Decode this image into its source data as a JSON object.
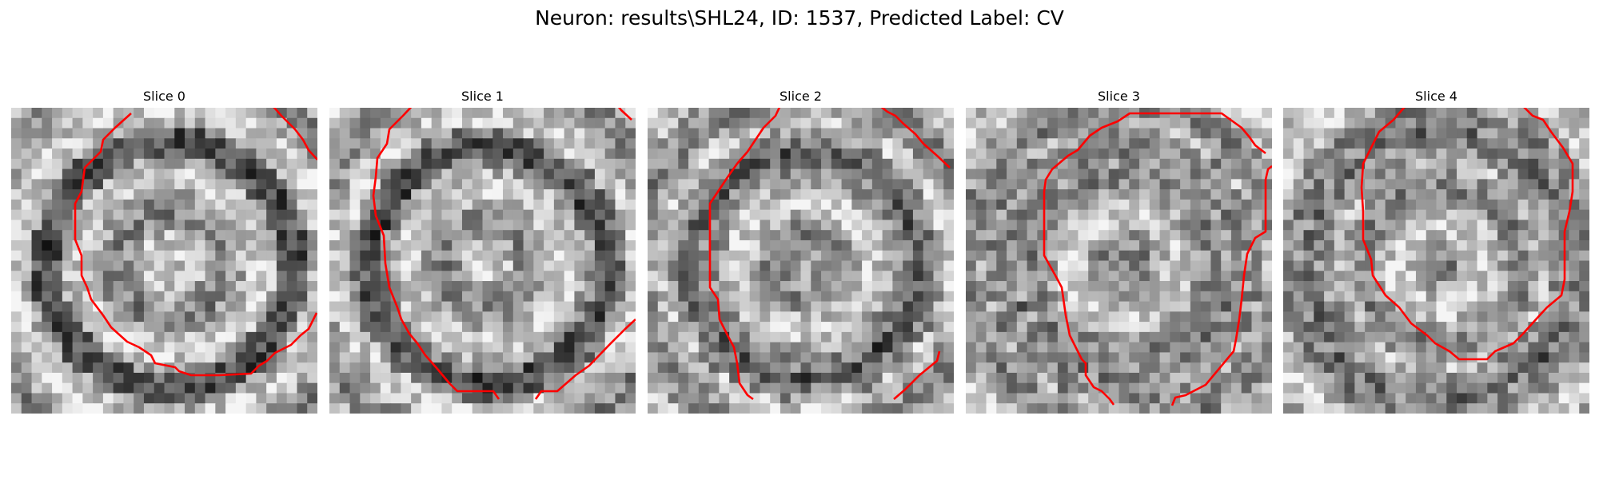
{
  "figure": {
    "title": "Neuron: results\\SHL24, ID: 1537, Predicted Label: CV"
  },
  "panels": [
    {
      "title": "Slice 0",
      "contours": [
        [
          [
            150,
            142
          ],
          [
            130,
            160
          ],
          [
            115,
            175
          ],
          [
            112,
            190
          ],
          [
            92,
            210
          ],
          [
            88,
            240
          ],
          [
            80,
            255
          ],
          [
            80,
            300
          ],
          [
            88,
            320
          ],
          [
            88,
            345
          ],
          [
            95,
            360
          ],
          [
            100,
            375
          ],
          [
            115,
            395
          ],
          [
            125,
            410
          ],
          [
            145,
            428
          ],
          [
            160,
            435
          ],
          [
            175,
            445
          ],
          [
            180,
            455
          ],
          [
            205,
            460
          ],
          [
            210,
            465
          ],
          [
            225,
            470
          ],
          [
            260,
            470
          ],
          [
            300,
            468
          ],
          [
            310,
            458
          ],
          [
            320,
            452
          ],
          [
            330,
            442
          ],
          [
            350,
            432
          ],
          [
            362,
            420
          ],
          [
            372,
            412
          ],
          [
            378,
            400
          ],
          [
            382,
            392
          ]
        ],
        [
          [
            323,
            128
          ],
          [
            338,
            145
          ],
          [
            355,
            162
          ],
          [
            365,
            175
          ],
          [
            372,
            188
          ],
          [
            383,
            200
          ]
        ]
      ]
    },
    {
      "title": "Slice 1",
      "contours": [
        [
          [
            108,
            128
          ],
          [
            92,
            145
          ],
          [
            75,
            162
          ],
          [
            72,
            180
          ],
          [
            60,
            198
          ],
          [
            58,
            222
          ],
          [
            55,
            245
          ],
          [
            58,
            270
          ],
          [
            68,
            295
          ],
          [
            70,
            330
          ],
          [
            75,
            360
          ],
          [
            85,
            385
          ],
          [
            90,
            400
          ],
          [
            100,
            418
          ],
          [
            110,
            430
          ],
          [
            120,
            445
          ],
          [
            135,
            462
          ],
          [
            150,
            480
          ],
          [
            160,
            490
          ],
          [
            205,
            490
          ],
          [
            212,
            500
          ]
        ],
        [
          [
            357,
            128
          ],
          [
            365,
            138
          ],
          [
            378,
            150
          ]
        ],
        [
          [
            258,
            500
          ],
          [
            265,
            490
          ],
          [
            285,
            490
          ],
          [
            308,
            470
          ],
          [
            325,
            458
          ],
          [
            350,
            432
          ],
          [
            370,
            412
          ],
          [
            383,
            400
          ]
        ]
      ]
    },
    {
      "title": "Slice 2",
      "contours": [
        [
          [
            167,
            130
          ],
          [
            160,
            145
          ],
          [
            145,
            160
          ],
          [
            135,
            175
          ],
          [
            125,
            190
          ],
          [
            112,
            205
          ],
          [
            100,
            222
          ],
          [
            88,
            240
          ],
          [
            78,
            255
          ],
          [
            78,
            300
          ],
          [
            78,
            360
          ],
          [
            88,
            375
          ],
          [
            90,
            400
          ],
          [
            100,
            420
          ],
          [
            108,
            435
          ],
          [
            112,
            455
          ],
          [
            115,
            480
          ],
          [
            125,
            495
          ],
          [
            132,
            500
          ]
        ],
        [
          [
            285,
            128
          ],
          [
            300,
            140
          ],
          [
            310,
            145
          ],
          [
            320,
            155
          ],
          [
            335,
            168
          ],
          [
            345,
            180
          ],
          [
            362,
            195
          ],
          [
            378,
            210
          ]
        ],
        [
          [
            308,
            500
          ],
          [
            322,
            488
          ],
          [
            340,
            470
          ],
          [
            362,
            452
          ],
          [
            365,
            440
          ]
        ]
      ]
    },
    {
      "title": "Slice 3",
      "contours": [
        [
          [
            375,
            192
          ],
          [
            362,
            182
          ],
          [
            355,
            172
          ],
          [
            345,
            160
          ],
          [
            320,
            142
          ],
          [
            302,
            142
          ],
          [
            285,
            142
          ],
          [
            260,
            142
          ],
          [
            205,
            142
          ],
          [
            190,
            152
          ],
          [
            170,
            160
          ],
          [
            155,
            170
          ],
          [
            140,
            188
          ],
          [
            128,
            195
          ],
          [
            108,
            212
          ],
          [
            100,
            225
          ],
          [
            98,
            240
          ],
          [
            98,
            320
          ],
          [
            112,
            345
          ],
          [
            120,
            360
          ],
          [
            125,
            395
          ],
          [
            130,
            420
          ],
          [
            140,
            440
          ],
          [
            145,
            450
          ],
          [
            150,
            455
          ],
          [
            150,
            470
          ],
          [
            160,
            485
          ],
          [
            170,
            490
          ],
          [
            180,
            500
          ],
          [
            185,
            507
          ]
        ],
        [
          [
            258,
            508
          ],
          [
            262,
            498
          ],
          [
            275,
            495
          ],
          [
            300,
            482
          ],
          [
            310,
            470
          ],
          [
            335,
            440
          ],
          [
            338,
            425
          ],
          [
            342,
            400
          ],
          [
            345,
            375
          ],
          [
            348,
            345
          ],
          [
            352,
            318
          ],
          [
            362,
            298
          ],
          [
            375,
            290
          ],
          [
            375,
            225
          ],
          [
            378,
            212
          ],
          [
            383,
            208
          ]
        ]
      ]
    },
    {
      "title": "Slice 4",
      "contours": [
        [
          [
            157,
            128
          ],
          [
            138,
            150
          ],
          [
            120,
            165
          ],
          [
            110,
            185
          ],
          [
            100,
            205
          ],
          [
            98,
            235
          ],
          [
            100,
            265
          ],
          [
            100,
            300
          ],
          [
            110,
            325
          ],
          [
            112,
            345
          ],
          [
            128,
            370
          ],
          [
            145,
            385
          ],
          [
            160,
            405
          ],
          [
            180,
            420
          ],
          [
            190,
            430
          ],
          [
            208,
            440
          ],
          [
            220,
            450
          ],
          [
            255,
            450
          ],
          [
            265,
            440
          ],
          [
            288,
            430
          ],
          [
            300,
            418
          ],
          [
            318,
            398
          ],
          [
            330,
            385
          ],
          [
            348,
            370
          ],
          [
            352,
            350
          ],
          [
            352,
            330
          ],
          [
            352,
            290
          ],
          [
            358,
            265
          ],
          [
            362,
            240
          ],
          [
            362,
            205
          ],
          [
            350,
            185
          ],
          [
            335,
            165
          ],
          [
            325,
            150
          ],
          [
            312,
            145
          ],
          [
            295,
            128
          ]
        ]
      ]
    }
  ]
}
